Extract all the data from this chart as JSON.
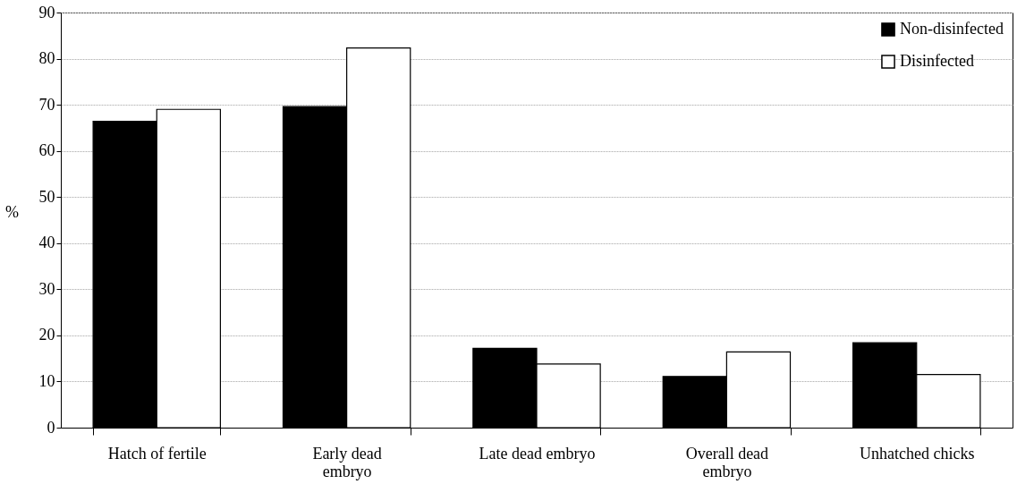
{
  "chart_data": {
    "type": "bar",
    "ylabel": "%",
    "categories": [
      "Hatch of fertile",
      "Early dead\nembryo",
      "Late dead embryo",
      "Overall dead\nembryo",
      "Unhatched chicks"
    ],
    "series": [
      {
        "name": "Non-disinfected",
        "color": "#000000",
        "values": [
          66.4,
          69.6,
          17.2,
          11.1,
          18.4
        ]
      },
      {
        "name": "Disinfected",
        "color": "#ffffff",
        "values": [
          69.0,
          82.3,
          13.8,
          16.4,
          11.5
        ]
      }
    ],
    "ylim": [
      0,
      90
    ],
    "yticks": [
      0,
      10,
      20,
      30,
      40,
      50,
      60,
      70,
      80,
      90
    ],
    "grid": "y",
    "legend": "top right"
  }
}
